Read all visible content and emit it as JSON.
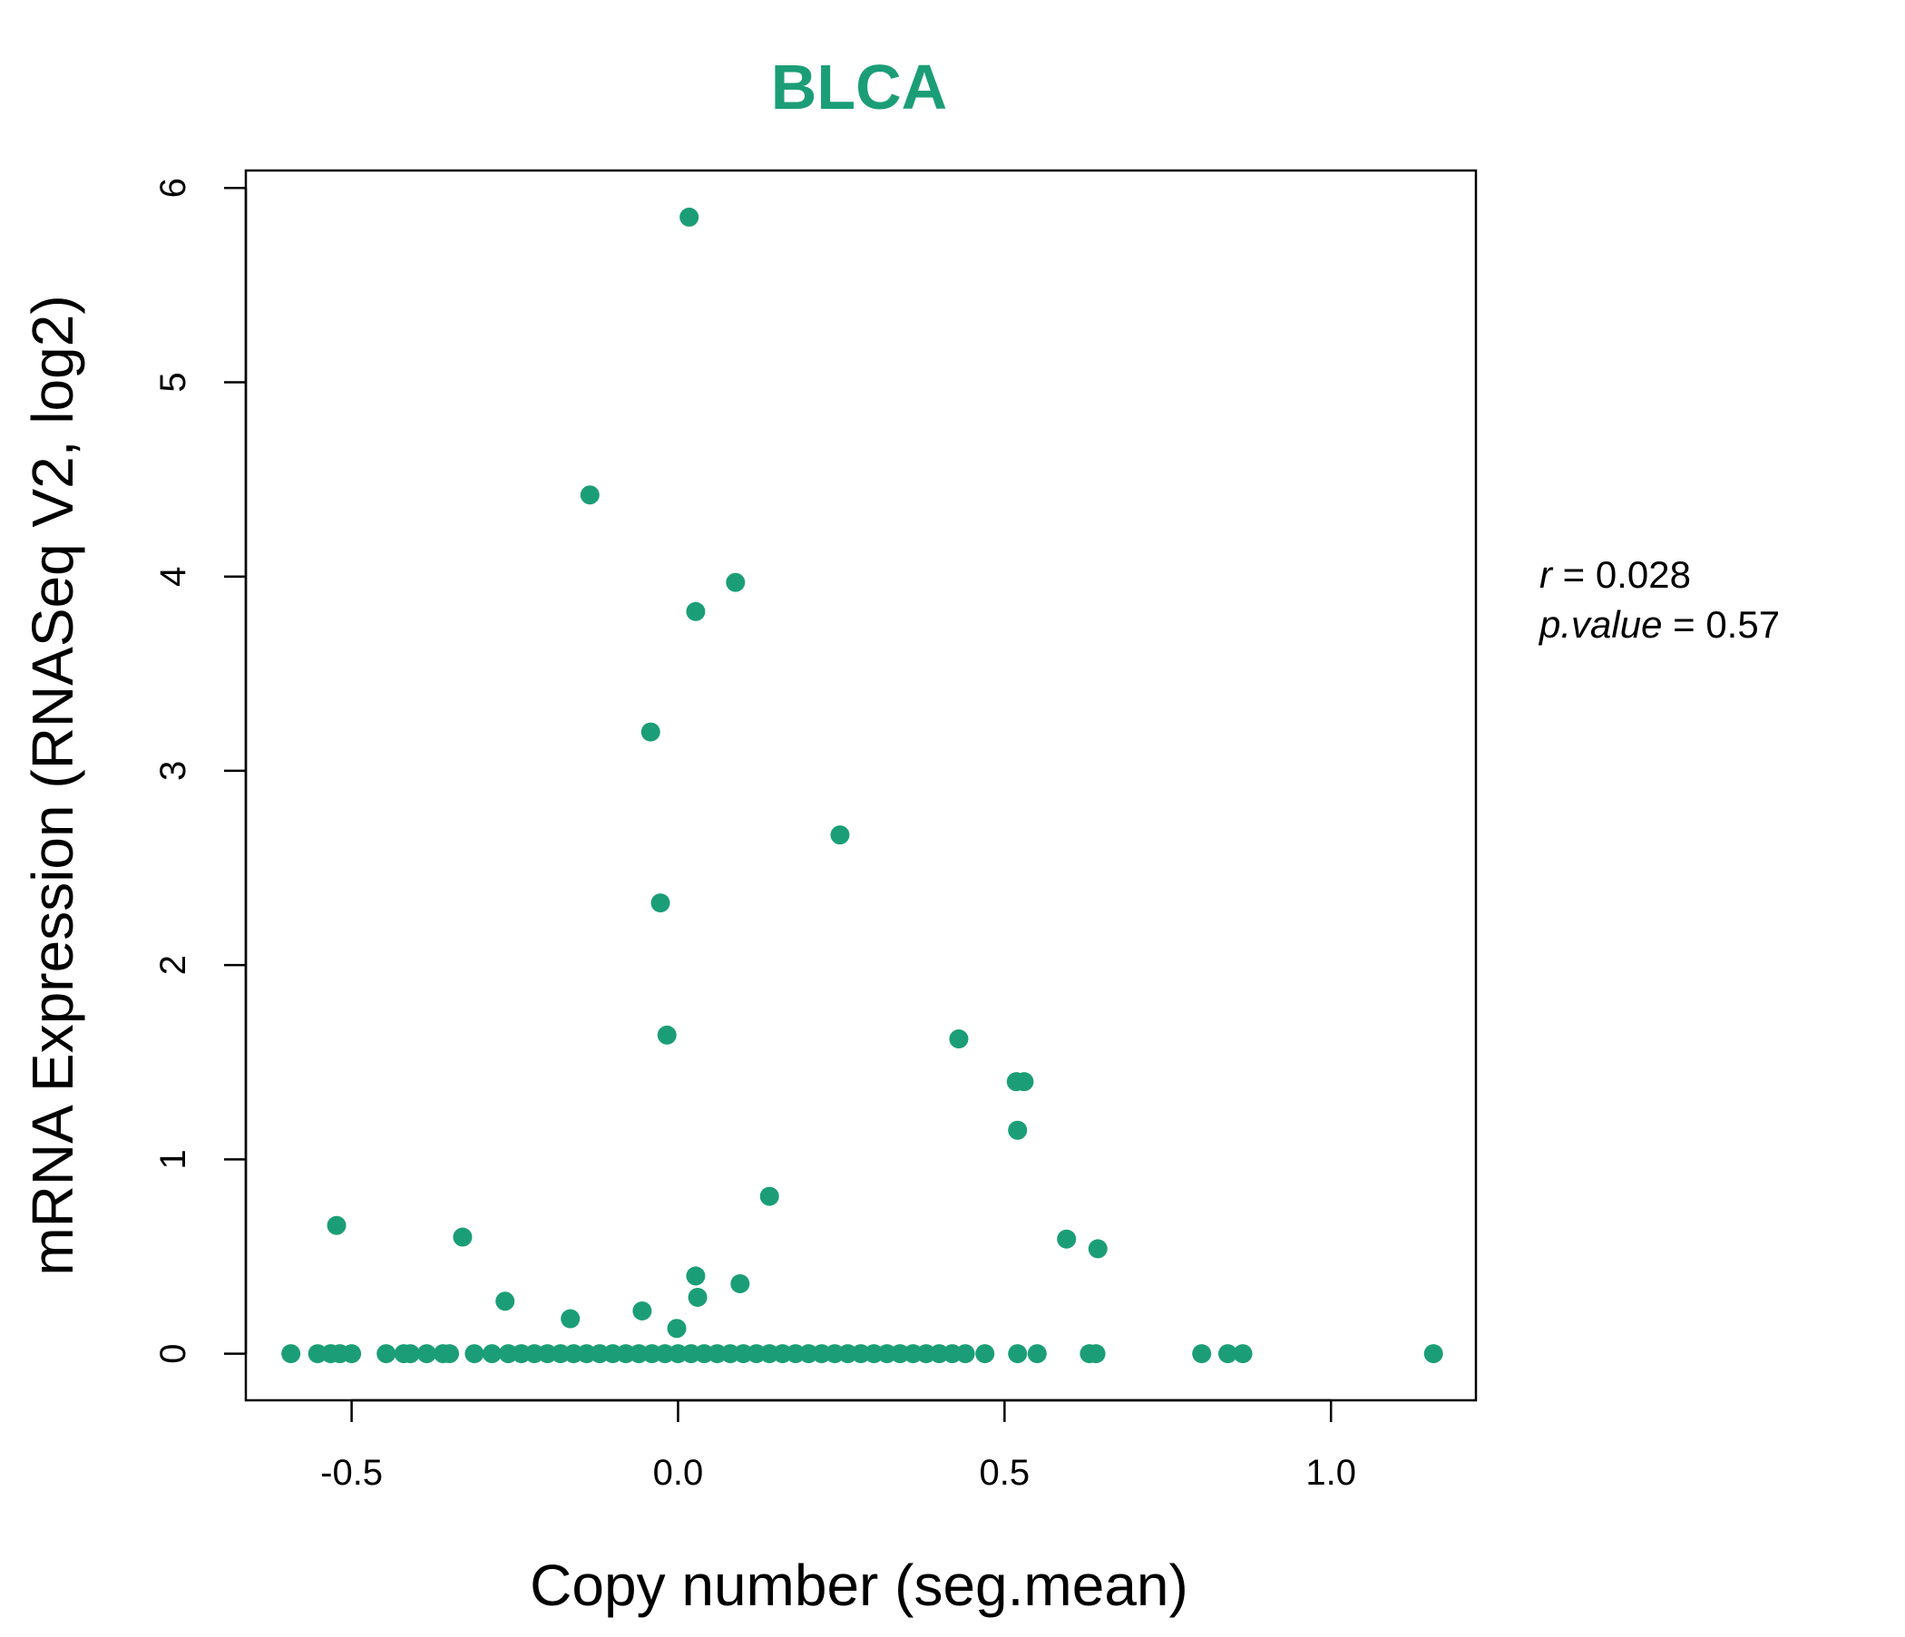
{
  "chart_data": {
    "type": "scatter",
    "title": "BLCA",
    "xlabel": "Copy number (seg.mean)",
    "ylabel": "mRNA Expression (RNASeq V2, log2)",
    "xlim": [
      -0.662,
      1.222
    ],
    "ylim": [
      -0.24,
      6.09
    ],
    "x_ticks": [
      -0.5,
      0.0,
      0.5,
      1.0
    ],
    "x_tick_labels": [
      "-0.5",
      "0.0",
      "0.5",
      "1.0"
    ],
    "y_ticks": [
      0,
      1,
      2,
      3,
      4,
      5,
      6
    ],
    "y_tick_labels": [
      "0",
      "1",
      "2",
      "3",
      "4",
      "5",
      "6"
    ],
    "grid": false,
    "legend": "none",
    "point_color": "#1B9E77",
    "title_color": "#1B9E77",
    "stats": {
      "r_label": "r",
      "r_value": "0.028",
      "p_label": "p.value",
      "p_value": "0.57"
    },
    "points": [
      {
        "x": 0.017,
        "y": 5.85
      },
      {
        "x": -0.135,
        "y": 4.42
      },
      {
        "x": 0.088,
        "y": 3.97
      },
      {
        "x": 0.027,
        "y": 3.82
      },
      {
        "x": -0.042,
        "y": 3.2
      },
      {
        "x": 0.248,
        "y": 2.67
      },
      {
        "x": -0.027,
        "y": 2.32
      },
      {
        "x": -0.017,
        "y": 1.64
      },
      {
        "x": 0.43,
        "y": 1.62
      },
      {
        "x": 0.518,
        "y": 1.4
      },
      {
        "x": 0.53,
        "y": 1.4
      },
      {
        "x": 0.52,
        "y": 1.15
      },
      {
        "x": 0.14,
        "y": 0.81
      },
      {
        "x": -0.523,
        "y": 0.66
      },
      {
        "x": -0.33,
        "y": 0.6
      },
      {
        "x": 0.595,
        "y": 0.59
      },
      {
        "x": 0.643,
        "y": 0.54
      },
      {
        "x": 0.027,
        "y": 0.4
      },
      {
        "x": 0.095,
        "y": 0.36
      },
      {
        "x": 0.03,
        "y": 0.29
      },
      {
        "x": -0.265,
        "y": 0.27
      },
      {
        "x": -0.055,
        "y": 0.22
      },
      {
        "x": -0.165,
        "y": 0.18
      },
      {
        "x": -0.002,
        "y": 0.13
      },
      {
        "x": -0.593,
        "y": 0
      },
      {
        "x": -0.552,
        "y": 0
      },
      {
        "x": -0.532,
        "y": 0
      },
      {
        "x": -0.518,
        "y": 0
      },
      {
        "x": -0.5,
        "y": 0
      },
      {
        "x": -0.447,
        "y": 0
      },
      {
        "x": -0.42,
        "y": 0
      },
      {
        "x": -0.41,
        "y": 0
      },
      {
        "x": -0.385,
        "y": 0
      },
      {
        "x": -0.36,
        "y": 0
      },
      {
        "x": -0.35,
        "y": 0
      },
      {
        "x": -0.312,
        "y": 0
      },
      {
        "x": -0.285,
        "y": 0
      },
      {
        "x": -0.26,
        "y": 0
      },
      {
        "x": -0.24,
        "y": 0
      },
      {
        "x": -0.22,
        "y": 0
      },
      {
        "x": -0.2,
        "y": 0
      },
      {
        "x": -0.18,
        "y": 0
      },
      {
        "x": -0.16,
        "y": 0
      },
      {
        "x": -0.14,
        "y": 0
      },
      {
        "x": -0.12,
        "y": 0
      },
      {
        "x": -0.1,
        "y": 0
      },
      {
        "x": -0.08,
        "y": 0
      },
      {
        "x": -0.06,
        "y": 0
      },
      {
        "x": -0.04,
        "y": 0
      },
      {
        "x": -0.02,
        "y": 0
      },
      {
        "x": 0.0,
        "y": 0
      },
      {
        "x": 0.02,
        "y": 0
      },
      {
        "x": 0.04,
        "y": 0
      },
      {
        "x": 0.06,
        "y": 0
      },
      {
        "x": 0.08,
        "y": 0
      },
      {
        "x": 0.1,
        "y": 0
      },
      {
        "x": 0.12,
        "y": 0
      },
      {
        "x": 0.14,
        "y": 0
      },
      {
        "x": 0.16,
        "y": 0
      },
      {
        "x": 0.18,
        "y": 0
      },
      {
        "x": 0.2,
        "y": 0
      },
      {
        "x": 0.22,
        "y": 0
      },
      {
        "x": 0.24,
        "y": 0
      },
      {
        "x": 0.26,
        "y": 0
      },
      {
        "x": 0.28,
        "y": 0
      },
      {
        "x": 0.3,
        "y": 0
      },
      {
        "x": 0.32,
        "y": 0
      },
      {
        "x": 0.34,
        "y": 0
      },
      {
        "x": 0.36,
        "y": 0
      },
      {
        "x": 0.38,
        "y": 0
      },
      {
        "x": 0.4,
        "y": 0
      },
      {
        "x": 0.42,
        "y": 0
      },
      {
        "x": 0.44,
        "y": 0
      },
      {
        "x": 0.47,
        "y": 0
      },
      {
        "x": 0.52,
        "y": 0
      },
      {
        "x": 0.55,
        "y": 0
      },
      {
        "x": 0.63,
        "y": 0
      },
      {
        "x": 0.64,
        "y": 0
      },
      {
        "x": 0.802,
        "y": 0
      },
      {
        "x": 0.842,
        "y": 0
      },
      {
        "x": 0.865,
        "y": 0
      },
      {
        "x": 1.157,
        "y": 0
      }
    ]
  }
}
